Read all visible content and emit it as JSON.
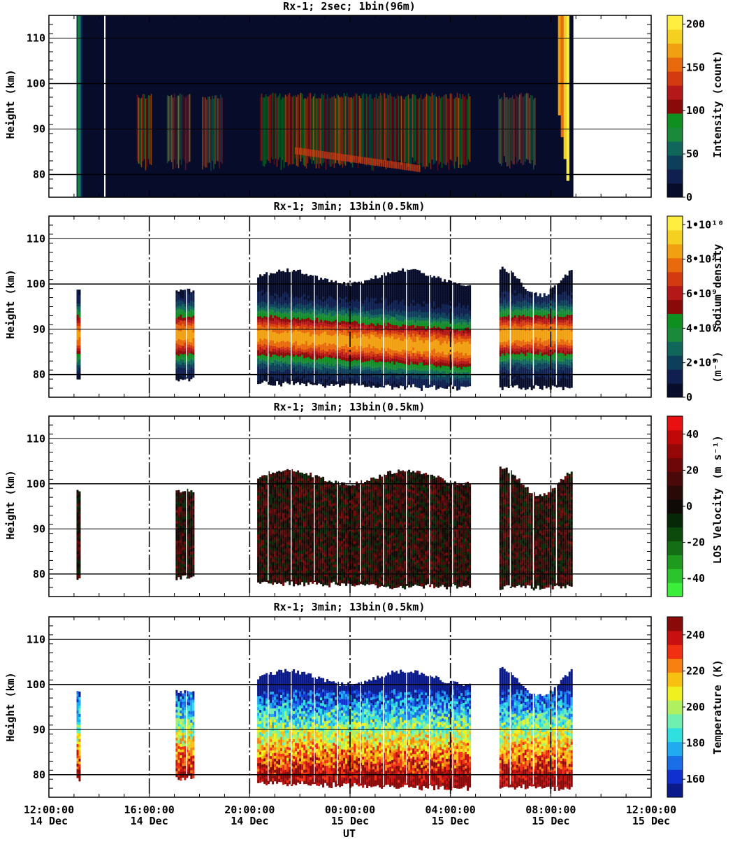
{
  "chart_data": [
    {
      "type": "heatmap",
      "title": "Rx-1;  2sec; 1bin(96m)",
      "ylabel": "Height (km)",
      "ylim": [
        75,
        115
      ],
      "y_ticks": [
        80,
        90,
        100,
        110
      ],
      "colorbar": {
        "label": "Intensity (count)",
        "range": [
          0,
          210
        ],
        "ticks": [
          {
            "value": 0,
            "label": "0"
          },
          {
            "value": 50,
            "label": "50"
          },
          {
            "value": 100,
            "label": "100"
          },
          {
            "value": 150,
            "label": "150"
          },
          {
            "value": 200,
            "label": "200"
          }
        ],
        "colors": [
          "#060c2a",
          "#0f2050",
          "#0e3f5a",
          "#10665a",
          "#1a8a3a",
          "#0e8f20",
          "#8a0a0a",
          "#b51818",
          "#d43a10",
          "#e86a0c",
          "#f0a010",
          "#f5d020",
          "#ffee40"
        ]
      },
      "data_hours": [
        13.1,
        20.2,
        32.9
      ],
      "layer_km": [
        82,
        98
      ],
      "peak_km": 88
    },
    {
      "type": "heatmap",
      "title": "Rx-1; 3min; 13bin(0.5km)",
      "ylabel": "Height (km)",
      "ylim": [
        75,
        115
      ],
      "y_ticks": [
        80,
        90,
        100,
        110
      ],
      "colorbar": {
        "label": "Sodium density",
        "unit": "(m⁻³)",
        "range": [
          0,
          10.5
        ],
        "ticks": [
          {
            "value": 0,
            "label": "0"
          },
          {
            "value": 2,
            "label": "2•10⁹"
          },
          {
            "value": 4,
            "label": "4•10⁹"
          },
          {
            "value": 6,
            "label": "6•10⁹"
          },
          {
            "value": 8,
            "label": "8•10⁹"
          },
          {
            "value": 10,
            "label": "1•10¹⁰"
          }
        ],
        "colors": [
          "#060c2a",
          "#0f2050",
          "#0e3f5a",
          "#10665a",
          "#1a8a3a",
          "#0e8f20",
          "#8a0a0a",
          "#b51818",
          "#d43a10",
          "#e86a0c",
          "#f0a010",
          "#f5d020",
          "#ffee40"
        ]
      },
      "segments_hours": [
        [
          13.1,
          13.2
        ],
        [
          17.05,
          17.75
        ],
        [
          20.3,
          28.8
        ],
        [
          29.95,
          32.8
        ]
      ]
    },
    {
      "type": "heatmap",
      "title": "Rx-1; 3min; 13bin(0.5km)",
      "ylabel": "Height (km)",
      "ylim": [
        75,
        115
      ],
      "y_ticks": [
        80,
        90,
        100,
        110
      ],
      "colorbar": {
        "label": "LOS Velocity",
        "unit": "(m s⁻¹)",
        "range": [
          -50,
          50
        ],
        "ticks": [
          {
            "value": -40,
            "label": "-40"
          },
          {
            "value": -20,
            "label": "-20"
          },
          {
            "value": 0,
            "label": "0"
          },
          {
            "value": 20,
            "label": "20"
          },
          {
            "value": 40,
            "label": "40"
          }
        ],
        "colors": [
          "#3aee3a",
          "#2cc42c",
          "#1e9a1e",
          "#146e14",
          "#0c4a0c",
          "#062806",
          "#100a06",
          "#2a0a06",
          "#4a0808",
          "#6e0808",
          "#960808",
          "#c00808",
          "#e81010"
        ]
      },
      "segments_hours": [
        [
          13.1,
          13.2
        ],
        [
          17.05,
          17.75
        ],
        [
          20.3,
          28.8
        ],
        [
          29.95,
          32.8
        ]
      ]
    },
    {
      "type": "heatmap",
      "title": "Rx-1; 3min; 13bin(0.5km)",
      "ylabel": "Height (km)",
      "xlabel": "UT",
      "ylim": [
        75,
        115
      ],
      "y_ticks": [
        80,
        90,
        100,
        110
      ],
      "x_ticks": [
        {
          "hour": 12,
          "time": "12:00:00",
          "date": "14 Dec"
        },
        {
          "hour": 16,
          "time": "16:00:00",
          "date": "14 Dec"
        },
        {
          "hour": 20,
          "time": "20:00:00",
          "date": "14 Dec"
        },
        {
          "hour": 24,
          "time": "00:00:00",
          "date": "15 Dec"
        },
        {
          "hour": 28,
          "time": "04:00:00",
          "date": "15 Dec"
        },
        {
          "hour": 32,
          "time": "08:00:00",
          "date": "15 Dec"
        },
        {
          "hour": 36,
          "time": "12:00:00",
          "date": "15 Dec"
        }
      ],
      "xlim": [
        12,
        36
      ],
      "colorbar": {
        "label": "Temperature (K)",
        "range": [
          150,
          250
        ],
        "ticks": [
          {
            "value": 160,
            "label": "160"
          },
          {
            "value": 180,
            "label": "180"
          },
          {
            "value": 200,
            "label": "200"
          },
          {
            "value": 220,
            "label": "220"
          },
          {
            "value": 240,
            "label": "240"
          }
        ],
        "colors": [
          "#0a1a8a",
          "#1030d0",
          "#1a6ee8",
          "#20aaf0",
          "#30e0e0",
          "#70f0b0",
          "#b0f060",
          "#f0f020",
          "#f8c010",
          "#f88010",
          "#f03010",
          "#c81010",
          "#8a0a0a"
        ]
      },
      "segments_hours": [
        [
          13.1,
          13.2
        ],
        [
          17.05,
          17.75
        ],
        [
          20.3,
          28.8
        ],
        [
          29.95,
          32.8
        ]
      ]
    }
  ]
}
